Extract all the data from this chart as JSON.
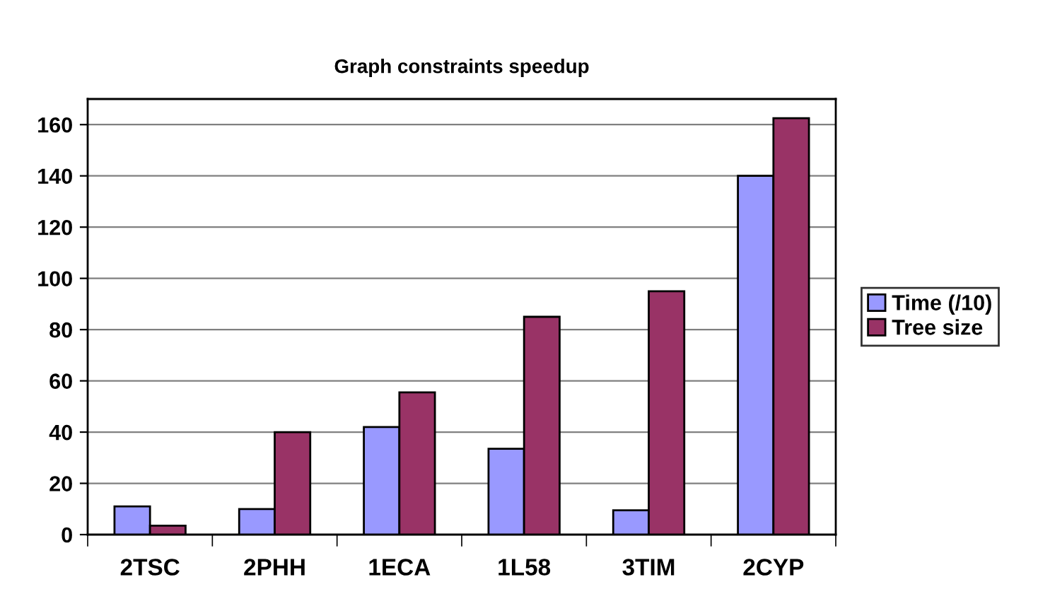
{
  "chart_data": {
    "type": "bar",
    "title": "Graph constraints speedup",
    "categories": [
      "2TSC",
      "2PHH",
      "1ECA",
      "1L58",
      "3TIM",
      "2CYP"
    ],
    "series": [
      {
        "name": "Time (/10)",
        "color": "#9999ff",
        "values": [
          11,
          10,
          42,
          33.5,
          9.5,
          140
        ]
      },
      {
        "name": "Tree size",
        "color": "#993366",
        "values": [
          3.5,
          40,
          55.5,
          85,
          95,
          162.5
        ]
      }
    ],
    "ylim": [
      0,
      170
    ],
    "yticks": [
      0,
      20,
      40,
      60,
      80,
      100,
      120,
      140,
      160
    ],
    "grid": "y",
    "legend": "right"
  }
}
